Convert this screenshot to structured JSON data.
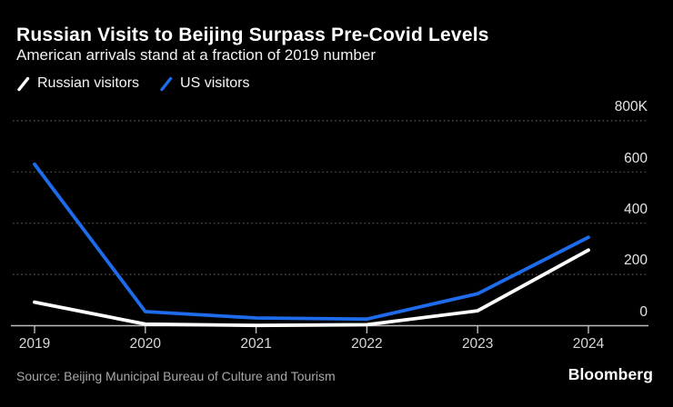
{
  "header": {
    "title": "Russian Visits to Beijing Surpass Pre-Covid Levels",
    "subtitle": "American arrivals stand at a fraction of 2019 number"
  },
  "chart_data": {
    "type": "line",
    "title": "Russian Visits to Beijing Surpass Pre-Covid Levels",
    "subtitle": "American arrivals stand at a fraction of 2019 number",
    "x": [
      2019,
      2020,
      2021,
      2022,
      2023,
      2024
    ],
    "x_tick_labels": [
      "2019",
      "2020",
      "2021",
      "2022",
      "2023",
      "2024"
    ],
    "y_tick_labels": [
      "800K",
      "600",
      "400",
      "200",
      "0"
    ],
    "y_tick_values_thousands": [
      800,
      600,
      400,
      200,
      0
    ],
    "ylim_thousands": [
      0,
      800
    ],
    "unit": "visitors (thousands)",
    "grid": "horizontal dotted gridlines on black background",
    "legend_position": "top-left",
    "series": [
      {
        "name": "Russian visitors",
        "color": "#ffffff",
        "values_thousands": [
          92,
          6,
          1,
          4,
          58,
          295
        ]
      },
      {
        "name": "US visitors",
        "color": "#1e6ceb",
        "values_thousands": [
          630,
          55,
          30,
          26,
          125,
          345
        ]
      }
    ]
  },
  "footer": {
    "source": "Source: Beijing Municipal Bureau of Culture and Tourism",
    "brand": "Bloomberg"
  }
}
